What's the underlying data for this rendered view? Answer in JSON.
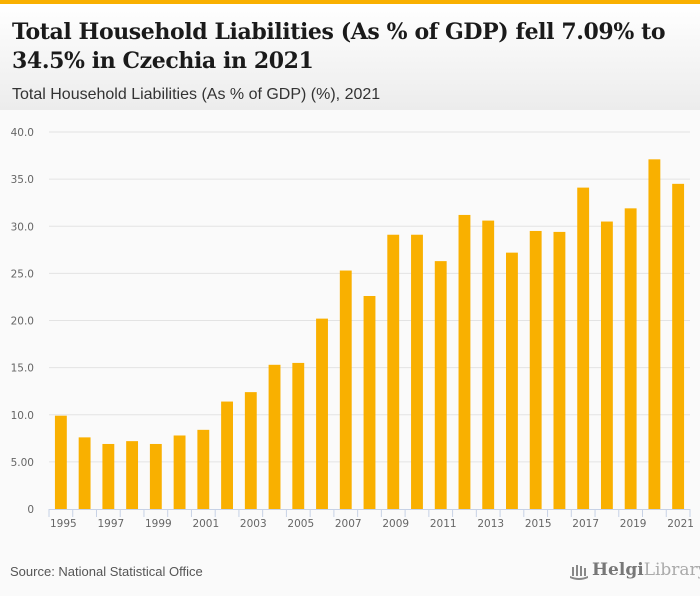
{
  "header": {
    "title": "Total Household Liabilities (As % of GDP) fell 7.09% to 34.5% in Czechia in 2021",
    "subtitle": "Total Household Liabilities (As % of GDP) (%), 2021"
  },
  "footer": {
    "source": "Source: National Statistical Office",
    "logo_part1": "Helgi",
    "logo_part2": "Library."
  },
  "colors": {
    "bar": "#f9b000",
    "accent": "#f9b000",
    "grid": "#e3e3e3",
    "axis": "#c7d2e6"
  },
  "chart_data": {
    "type": "bar",
    "title": "Total Household Liabilities (As % of GDP) (%), 2021",
    "xlabel": "",
    "ylabel": "",
    "ylim": [
      0,
      40
    ],
    "grid": true,
    "yticks": [
      0,
      5,
      10,
      15,
      20,
      25,
      30,
      35,
      40
    ],
    "ytick_labels": [
      "0",
      "5.00",
      "10.0",
      "15.0",
      "20.0",
      "25.0",
      "30.0",
      "35.0",
      "40.0"
    ],
    "categories": [
      "1995",
      "1996",
      "1997",
      "1998",
      "1999",
      "2000",
      "2001",
      "2002",
      "2003",
      "2004",
      "2005",
      "2006",
      "2007",
      "2008",
      "2009",
      "2010",
      "2011",
      "2012",
      "2013",
      "2014",
      "2015",
      "2016",
      "2017",
      "2018",
      "2019",
      "2020",
      "2021"
    ],
    "xtick_labels": [
      "1995",
      "1997",
      "1999",
      "2001",
      "2003",
      "2005",
      "2007",
      "2009",
      "2011",
      "2013",
      "2015",
      "2017",
      "2019",
      "2021"
    ],
    "values": [
      9.9,
      7.6,
      6.9,
      7.2,
      6.9,
      7.8,
      8.4,
      11.4,
      12.4,
      15.3,
      15.5,
      20.2,
      25.3,
      22.6,
      29.1,
      29.1,
      26.3,
      31.2,
      30.6,
      27.2,
      29.5,
      29.4,
      34.1,
      30.5,
      31.9,
      37.1,
      34.5
    ]
  }
}
